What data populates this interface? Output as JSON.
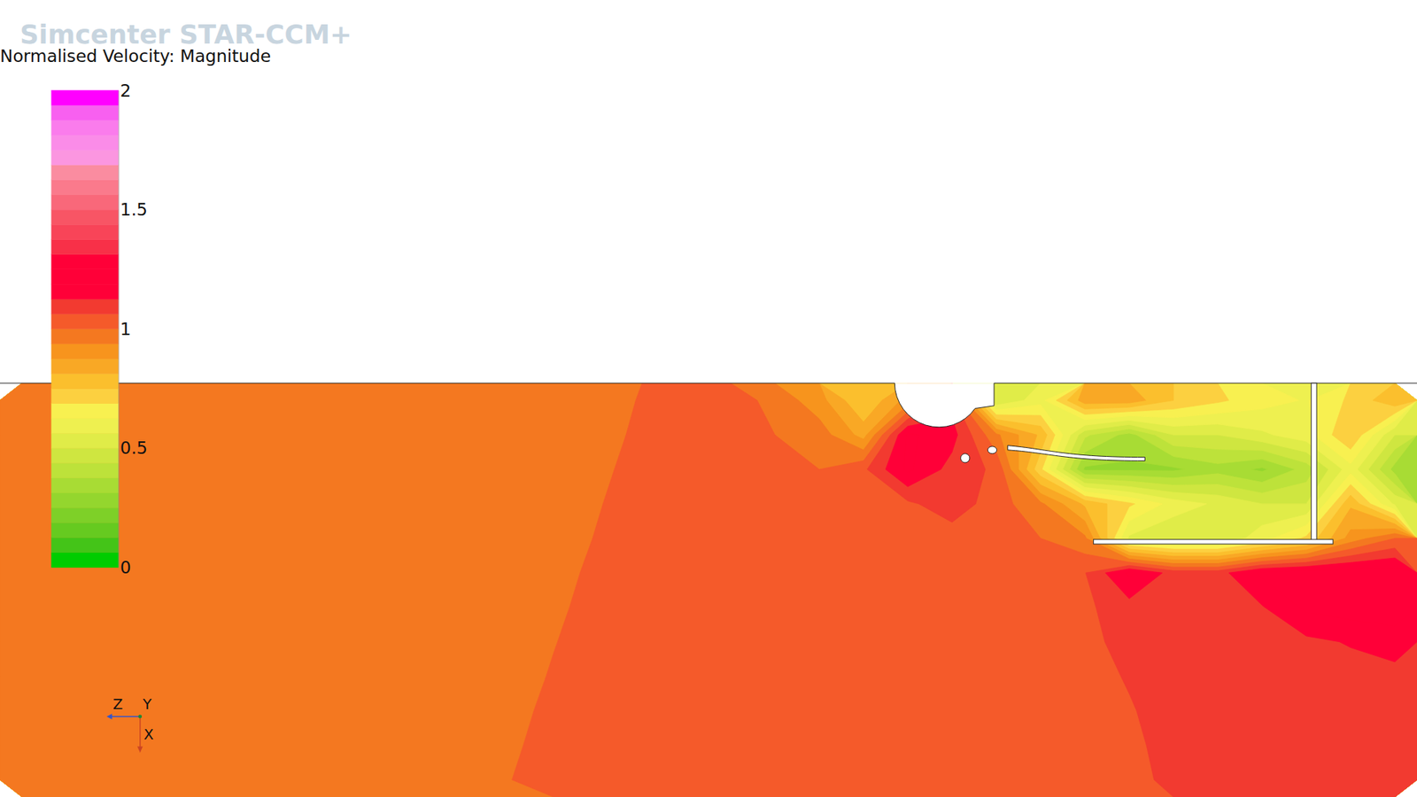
{
  "chart_data": {
    "type": "contour",
    "title": "Normalised Velocity: Magnitude",
    "watermark": "Simcenter STAR-CCM+",
    "axis_triad": [
      "Z",
      "Y",
      "X"
    ],
    "colorbar": {
      "range": [
        0,
        2
      ],
      "ticks": [
        0,
        0.5,
        1,
        1.5,
        2
      ],
      "levels": [
        0,
        0.0625,
        0.125,
        0.1875,
        0.25,
        0.3125,
        0.375,
        0.4375,
        0.5,
        0.5625,
        0.625,
        0.6875,
        0.75,
        0.8125,
        0.875,
        0.9375,
        1,
        1.0625,
        1.125,
        1.1875,
        1.25,
        1.3125,
        1.375,
        1.4375,
        1.5,
        1.5625,
        1.625,
        1.6875,
        1.75,
        1.8125,
        1.875,
        1.9375,
        2
      ],
      "colors": [
        "#00cc00",
        "#44c418",
        "#66ca20",
        "#7ed028",
        "#94d62e",
        "#a8dc34",
        "#bde23a",
        "#cfe640",
        "#e0ec48",
        "#eef050",
        "#f8f050",
        "#fcd040",
        "#fbbf2d",
        "#f9a825",
        "#f7941d",
        "#f47820",
        "#f55a2a",
        "#f23a30",
        "#ff0038",
        "#ff0038",
        "#ff0038",
        "#f83048",
        "#f84458",
        "#f85565",
        "#f9687a",
        "#fa7a8c",
        "#fa8ca0",
        "#fb96e0",
        "#fa8ce8",
        "#fa7cec",
        "#f860f0",
        "#ff00ff"
      ]
    },
    "z": [
      [
        0.97,
        0.97,
        0.97,
        0.97,
        0.97,
        0.97,
        0.97,
        0.97,
        0.97,
        0.97,
        0.97,
        0.97,
        0.97,
        0.97,
        1.005,
        1.03,
        1.03,
        0.98,
        0.9,
        0.75,
        0.9,
        1.1,
        0.5,
        0.6,
        0.85,
        0.85,
        0.75,
        0.7,
        0.65,
        0.62,
        0.7,
        0.8
      ],
      [
        0.97,
        0.97,
        0.97,
        0.97,
        0.97,
        0.97,
        0.97,
        0.97,
        0.97,
        0.97,
        0.97,
        0.97,
        0.97,
        0.97,
        1.017,
        1.03,
        1.03,
        1.0,
        0.97,
        0.85,
        1.2,
        1.15,
        0.95,
        0.8,
        0.45,
        0.35,
        0.5,
        0.5,
        0.55,
        0.6,
        0.75,
        0.5
      ],
      [
        0.97,
        0.97,
        0.97,
        0.97,
        0.97,
        0.97,
        0.97,
        0.97,
        0.97,
        0.97,
        0.97,
        0.97,
        0.97,
        0.982,
        1.03,
        1.03,
        1.03,
        1.03,
        1.0,
        1.05,
        1.2,
        1.1,
        1.05,
        0.7,
        0.3,
        0.3,
        0.3,
        0.35,
        0.3,
        0.4,
        0.6,
        0.35
      ],
      [
        0.97,
        0.97,
        0.97,
        0.97,
        0.97,
        0.97,
        0.97,
        0.97,
        0.97,
        0.97,
        0.97,
        0.97,
        0.97,
        0.996,
        1.03,
        1.03,
        1.03,
        1.03,
        1.02,
        1.04,
        1.05,
        1.1,
        1.03,
        0.95,
        0.8,
        0.7,
        0.6,
        0.55,
        0.5,
        0.5,
        0.8,
        0.55
      ],
      [
        0.97,
        0.97,
        0.97,
        0.97,
        0.97,
        0.97,
        0.97,
        0.97,
        0.97,
        0.97,
        0.97,
        0.97,
        0.97,
        1.004,
        1.03,
        1.03,
        1.03,
        1.03,
        1.03,
        1.03,
        1.03,
        1.03,
        1.03,
        1.0,
        0.95,
        0.55,
        0.5,
        0.5,
        0.6,
        0.7,
        0.9,
        1.0
      ],
      [
        0.97,
        0.97,
        0.97,
        0.97,
        0.97,
        0.97,
        0.97,
        0.97,
        0.97,
        0.97,
        0.97,
        0.97,
        0.97,
        1.02,
        1.03,
        1.03,
        1.03,
        1.03,
        1.03,
        1.03,
        1.03,
        1.03,
        1.03,
        1.03,
        1.06,
        1.2,
        1.1,
        1.1,
        1.2,
        1.22,
        1.22,
        1.22
      ],
      [
        0.97,
        0.97,
        0.97,
        0.97,
        0.97,
        0.97,
        0.97,
        0.97,
        0.97,
        0.97,
        0.97,
        0.97,
        0.983,
        1.03,
        1.03,
        1.03,
        1.03,
        1.03,
        1.03,
        1.03,
        1.03,
        1.03,
        1.03,
        1.03,
        1.05,
        1.1,
        1.1,
        1.1,
        1.12,
        1.2,
        1.22,
        1.22
      ],
      [
        0.97,
        0.97,
        0.97,
        0.97,
        0.97,
        0.97,
        0.97,
        0.97,
        0.97,
        0.97,
        0.97,
        0.97,
        0.997,
        1.03,
        1.03,
        1.03,
        1.03,
        1.03,
        1.03,
        1.03,
        1.03,
        1.03,
        1.03,
        1.03,
        1.04,
        1.09,
        1.1,
        1.1,
        1.1,
        1.11,
        1.13,
        1.16
      ],
      [
        0.97,
        0.97,
        0.97,
        0.97,
        0.97,
        0.97,
        0.97,
        0.97,
        0.97,
        0.97,
        0.97,
        0.97,
        1.006,
        1.03,
        1.03,
        1.03,
        1.03,
        1.03,
        1.03,
        1.03,
        1.03,
        1.03,
        1.03,
        1.03,
        1.03,
        1.07,
        1.1,
        1.1,
        1.1,
        1.1,
        1.1,
        1.1
      ],
      [
        0.97,
        0.97,
        0.97,
        0.97,
        0.97,
        0.97,
        0.97,
        0.97,
        0.97,
        0.97,
        0.97,
        0.97,
        1.024,
        1.03,
        1.03,
        1.03,
        1.03,
        1.03,
        1.03,
        1.03,
        1.03,
        1.03,
        1.03,
        1.03,
        1.03,
        1.055,
        1.1,
        1.1,
        1.1,
        1.1,
        1.1,
        1.1
      ],
      [
        0.97,
        0.97,
        0.97,
        0.97,
        0.97,
        0.97,
        0.97,
        0.97,
        0.97,
        0.97,
        0.97,
        0.986,
        1.03,
        1.03,
        1.03,
        1.03,
        1.03,
        1.03,
        1.03,
        1.03,
        1.03,
        1.03,
        1.03,
        1.03,
        1.03,
        1.045,
        1.09,
        1.1,
        1.1,
        1.1,
        1.1,
        1.1
      ],
      [
        0.97,
        0.97,
        0.97,
        0.97,
        0.97,
        0.97,
        0.97,
        0.97,
        0.97,
        0.97,
        0.97,
        0.998,
        1.03,
        1.03,
        1.03,
        1.03,
        1.03,
        1.03,
        1.03,
        1.03,
        1.03,
        1.03,
        1.03,
        1.03,
        1.03,
        1.04,
        1.08,
        1.1,
        1.1,
        1.1,
        1.1,
        1.1
      ]
    ]
  }
}
